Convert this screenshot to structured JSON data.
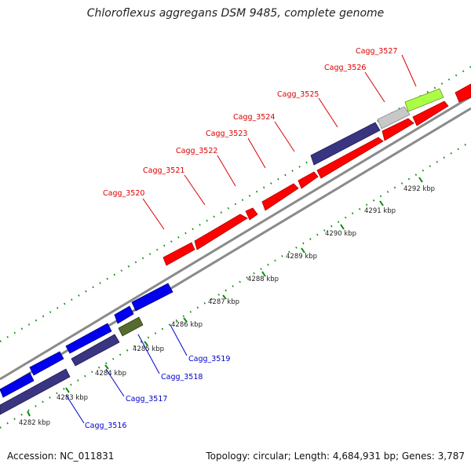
{
  "header": {
    "title": "Chloroflexus aggregans DSM 9485, complete genome"
  },
  "footer": {
    "accession": "Accession: NC_011831",
    "topology": "Topology: circular; Length: 4,684,931 bp; Genes: 3,787"
  },
  "colors": {
    "forward_cds": "#ff0000",
    "reverse_cds": "#0000ee",
    "trna_or_other": "#556b2f",
    "pseudogene": "#c8c8c8",
    "light_green": "#aaff44",
    "navy_feature": "#3a3580",
    "backbone": "#8a8a8a",
    "tick": "#0a8a0a",
    "label_red": "#dd0000",
    "label_blue": "#0000cc"
  },
  "scale_ticks": [
    "4282 kbp",
    "4283 kbp",
    "4284 kbp",
    "4285 kbp",
    "4286 kbp",
    "4287 kbp",
    "4288 kbp",
    "4289 kbp",
    "4290 kbp",
    "4291 kbp",
    "4292 kbp"
  ],
  "gene_labels_forward": [
    "Cagg_3520",
    "Cagg_3521",
    "Cagg_3522",
    "Cagg_3523",
    "Cagg_3524",
    "Cagg_3525",
    "Cagg_3526",
    "Cagg_3527"
  ],
  "gene_labels_reverse": [
    "Cagg_3516",
    "Cagg_3517",
    "Cagg_3518",
    "Cagg_3519"
  ]
}
